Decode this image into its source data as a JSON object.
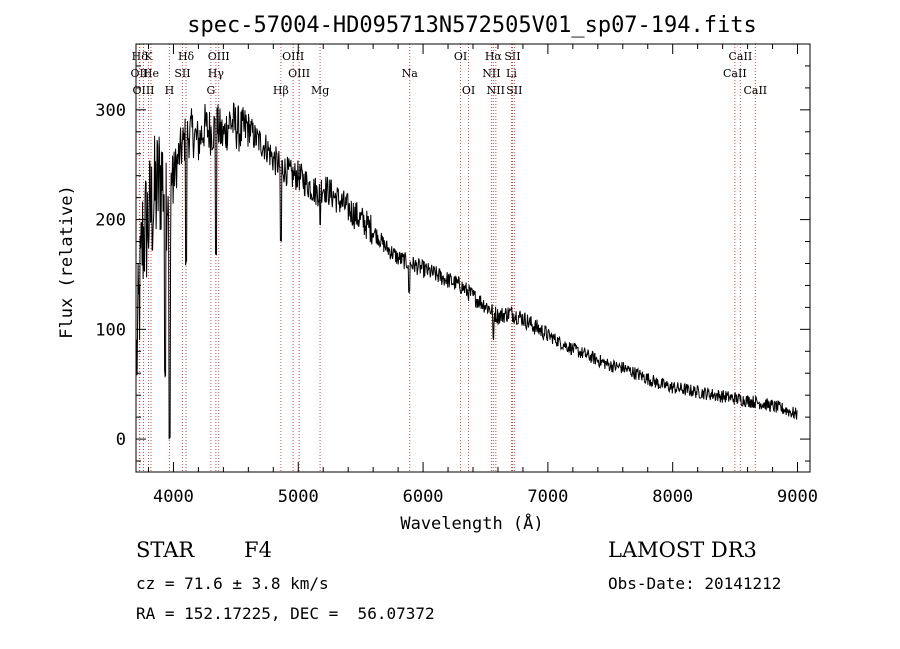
{
  "chart_data": {
    "type": "line",
    "title": "spec-57004-HD095713N572505V01_sp07-194.fits",
    "xlabel": "Wavelength (Å)",
    "ylabel": "Flux (relative)",
    "xlim": [
      3700,
      9100
    ],
    "ylim": [
      -30,
      360
    ],
    "xticks": [
      4000,
      5000,
      6000,
      7000,
      8000,
      9000
    ],
    "yticks": [
      0,
      100,
      200,
      300
    ],
    "series": [
      {
        "name": "flux",
        "x": [
          3700,
          3750,
          3800,
          3850,
          3900,
          3950,
          4000,
          4050,
          4100,
          4150,
          4200,
          4250,
          4300,
          4350,
          4400,
          4450,
          4500,
          4550,
          4600,
          4650,
          4700,
          4750,
          4800,
          4850,
          4900,
          4950,
          5000,
          5050,
          5100,
          5150,
          5200,
          5300,
          5400,
          5500,
          5600,
          5700,
          5800,
          5900,
          6000,
          6100,
          6200,
          6300,
          6400,
          6500,
          6600,
          6700,
          6800,
          6900,
          7000,
          7100,
          7200,
          7300,
          7400,
          7500,
          7600,
          7700,
          7800,
          7900,
          8000,
          8100,
          8200,
          8300,
          8400,
          8500,
          8600,
          8700,
          8800,
          8900,
          9000
        ],
        "y": [
          60,
          180,
          200,
          220,
          240,
          230,
          240,
          260,
          275,
          280,
          270,
          285,
          280,
          285,
          275,
          290,
          285,
          280,
          285,
          275,
          270,
          265,
          255,
          250,
          245,
          240,
          240,
          235,
          230,
          225,
          230,
          220,
          210,
          200,
          190,
          175,
          165,
          160,
          155,
          150,
          145,
          140,
          130,
          122,
          112,
          115,
          110,
          102,
          95,
          88,
          82,
          77,
          72,
          67,
          65,
          60,
          55,
          50,
          47,
          45,
          43,
          41,
          39,
          37,
          35,
          33,
          30,
          27,
          22
        ]
      }
    ],
    "absorption_dips": [
      {
        "x": 3933,
        "y": 60
      },
      {
        "x": 3968,
        "y": 0
      },
      {
        "x": 4101,
        "y": 160
      },
      {
        "x": 4340,
        "y": 170
      },
      {
        "x": 4861,
        "y": 180
      },
      {
        "x": 5175,
        "y": 195
      },
      {
        "x": 5890,
        "y": 135
      },
      {
        "x": 6563,
        "y": 90
      }
    ],
    "line_markers": [
      {
        "label": "Hδ",
        "x": 3730,
        "row": 1
      },
      {
        "label": "K",
        "x": 3800,
        "row": 1
      },
      {
        "label": "Hδ",
        "x": 4101,
        "row": 1
      },
      {
        "label": "OIII",
        "x": 4363,
        "row": 1
      },
      {
        "label": "OIII",
        "x": 4959,
        "row": 1
      },
      {
        "label": "OI",
        "x": 6300,
        "row": 1
      },
      {
        "label": "Hα",
        "x": 6563,
        "row": 1
      },
      {
        "label": "SII",
        "x": 6716,
        "row": 1
      },
      {
        "label": "CaII",
        "x": 8542,
        "row": 1
      },
      {
        "label": "OII",
        "x": 3727,
        "row": 2
      },
      {
        "label": "He",
        "x": 3820,
        "row": 2
      },
      {
        "label": "SII",
        "x": 4072,
        "row": 2
      },
      {
        "label": "Hγ",
        "x": 4340,
        "row": 2
      },
      {
        "label": "OIII",
        "x": 5007,
        "row": 2
      },
      {
        "label": "Na",
        "x": 5893,
        "row": 2
      },
      {
        "label": "NII",
        "x": 6548,
        "row": 2
      },
      {
        "label": "Li",
        "x": 6708,
        "row": 2
      },
      {
        "label": "CaII",
        "x": 8498,
        "row": 2
      },
      {
        "label": "OIII",
        "x": 3760,
        "row": 3
      },
      {
        "label": "H",
        "x": 3968,
        "row": 3
      },
      {
        "label": "G",
        "x": 4300,
        "row": 3
      },
      {
        "label": "Hβ",
        "x": 4861,
        "row": 3
      },
      {
        "label": "Mg",
        "x": 5175,
        "row": 3
      },
      {
        "label": "OI",
        "x": 6364,
        "row": 3
      },
      {
        "label": "NII",
        "x": 6583,
        "row": 3
      },
      {
        "label": "SII",
        "x": 6731,
        "row": 3
      },
      {
        "label": "CaII",
        "x": 8662,
        "row": 3
      }
    ]
  },
  "info": {
    "obj_type": "STAR",
    "subclass": "F4",
    "survey": "LAMOST DR3",
    "cz": "cz = 71.6 ± 3.8 km/s",
    "obs_date": "Obs-Date: 20141212",
    "radec": "RA = 152.17225, DEC =  56.07372"
  },
  "colors": {
    "line_marker": "#c0504d",
    "spectrum": "#000000"
  }
}
